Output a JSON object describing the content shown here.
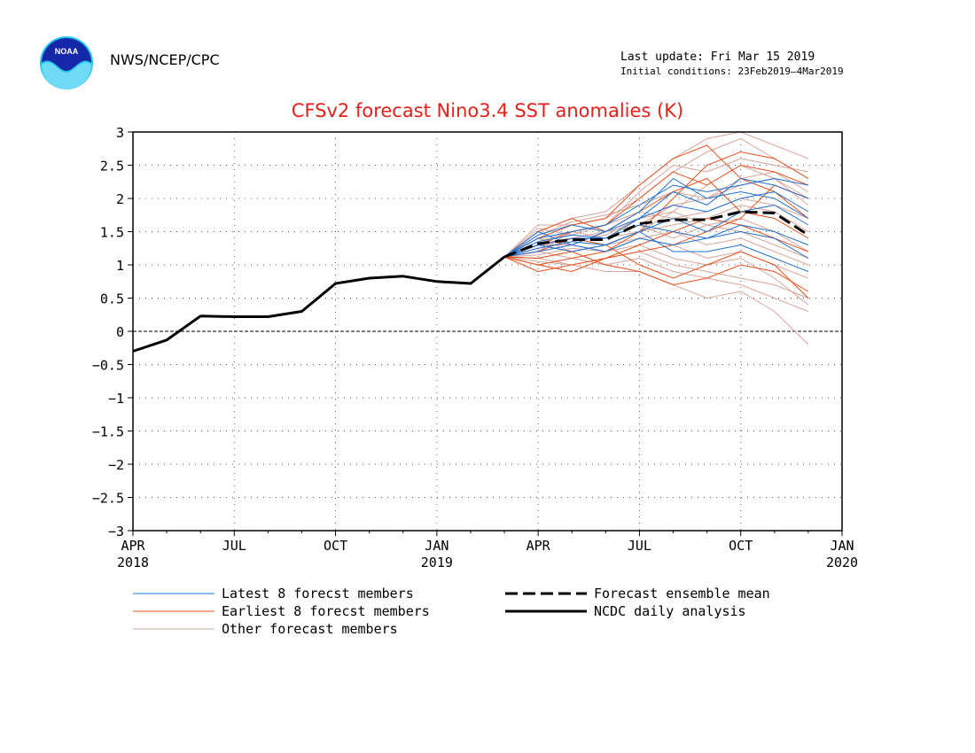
{
  "header": {
    "org": "NWS/NCEP/CPC",
    "last_update": "Last update: Fri Mar 15 2019",
    "initial_conditions": "Initial conditions: 23Feb2019–4Mar2019",
    "logo_text": "NOAA"
  },
  "colors": {
    "latest": "#1f6fd1",
    "earliest": "#e8501c",
    "other": "#d6a49a",
    "mean": "#000000",
    "analysis": "#000000",
    "title": "#e8201a"
  },
  "chart_data": {
    "type": "line",
    "title": "CFSv2 forecast Nino3.4 SST anomalies (K)",
    "ylabel": "",
    "xlabel": "",
    "ylim": [
      -3,
      3
    ],
    "xlim": [
      0,
      21
    ],
    "yticks": [
      3,
      2.5,
      2,
      1.5,
      1,
      0.5,
      0,
      -0.5,
      -1,
      -1.5,
      -2,
      -2.5,
      -3
    ],
    "ytick_labels": [
      "3",
      "2.5",
      "2",
      "1.5",
      "1",
      "0.5",
      "0",
      "−0.5",
      "−1",
      "−1.5",
      "−2",
      "−2.5",
      "−3"
    ],
    "xticks": [
      {
        "pos": 0,
        "month": "APR",
        "year": "2018"
      },
      {
        "pos": 3,
        "month": "JUL",
        "year": ""
      },
      {
        "pos": 6,
        "month": "OCT",
        "year": ""
      },
      {
        "pos": 9,
        "month": "JAN",
        "year": "2019"
      },
      {
        "pos": 12,
        "month": "APR",
        "year": ""
      },
      {
        "pos": 15,
        "month": "JUL",
        "year": ""
      },
      {
        "pos": 18,
        "month": "OCT",
        "year": ""
      },
      {
        "pos": 21,
        "month": "JAN",
        "year": "2020"
      }
    ],
    "grid": true,
    "zero_line": true,
    "legend": [
      {
        "label": "Latest 8 forecst members",
        "style": "latest"
      },
      {
        "label": "Earliest 8 forecst members",
        "style": "earliest"
      },
      {
        "label": "Other forecast members",
        "style": "other"
      },
      {
        "label": "Forecast ensemble mean",
        "style": "mean"
      },
      {
        "label": "NCDC daily analysis",
        "style": "analysis"
      }
    ],
    "ncdc_analysis": {
      "x": [
        0,
        1,
        2,
        3,
        4,
        5,
        6,
        7,
        8,
        9,
        10,
        11
      ],
      "y": [
        -0.3,
        -0.13,
        0.23,
        0.22,
        0.22,
        0.3,
        0.72,
        0.8,
        0.83,
        0.75,
        0.72,
        1.12
      ]
    },
    "ensemble_mean": {
      "x": [
        11,
        12,
        13,
        14,
        15,
        16,
        17,
        18,
        19,
        20
      ],
      "y": [
        1.12,
        1.32,
        1.38,
        1.38,
        1.62,
        1.68,
        1.68,
        1.8,
        1.78,
        1.45
      ]
    },
    "members_x": [
      11,
      12,
      13,
      14,
      15,
      16,
      17,
      18,
      19,
      20
    ],
    "latest_members": [
      [
        1.12,
        1.4,
        1.5,
        1.6,
        1.9,
        2.2,
        2.1,
        2.2,
        2.3,
        2.2
      ],
      [
        1.12,
        1.3,
        1.4,
        1.4,
        1.7,
        1.9,
        1.8,
        2.0,
        2.1,
        1.8
      ],
      [
        1.12,
        1.5,
        1.3,
        1.5,
        1.8,
        2.3,
        2.0,
        2.1,
        2.0,
        1.7
      ],
      [
        1.12,
        1.25,
        1.35,
        1.3,
        1.5,
        1.7,
        1.5,
        1.8,
        1.9,
        1.6
      ],
      [
        1.12,
        1.35,
        1.45,
        1.4,
        1.6,
        1.5,
        1.4,
        1.6,
        1.5,
        1.3
      ],
      [
        1.12,
        1.2,
        1.3,
        1.2,
        1.4,
        1.3,
        1.4,
        1.5,
        1.4,
        1.1
      ],
      [
        1.12,
        1.45,
        1.6,
        1.5,
        1.7,
        2.1,
        1.9,
        2.3,
        2.2,
        2.0
      ],
      [
        1.12,
        1.3,
        1.2,
        1.3,
        1.5,
        1.2,
        1.2,
        1.3,
        1.1,
        0.9
      ]
    ],
    "earliest_members": [
      [
        1.12,
        1.0,
        1.1,
        1.2,
        1.5,
        2.0,
        2.5,
        2.7,
        2.6,
        2.3
      ],
      [
        1.12,
        0.9,
        1.0,
        1.1,
        1.2,
        1.3,
        1.5,
        1.7,
        2.2,
        2.0
      ],
      [
        1.12,
        1.3,
        1.5,
        1.6,
        2.0,
        2.4,
        2.2,
        2.5,
        2.4,
        2.2
      ],
      [
        1.12,
        1.1,
        1.2,
        1.0,
        0.9,
        0.7,
        0.8,
        1.0,
        0.9,
        0.6
      ],
      [
        1.12,
        1.5,
        1.7,
        1.5,
        1.8,
        2.1,
        2.3,
        1.8,
        1.7,
        1.4
      ],
      [
        1.12,
        1.2,
        1.4,
        1.3,
        1.0,
        0.8,
        1.0,
        1.2,
        1.0,
        0.5
      ],
      [
        1.12,
        1.4,
        1.6,
        1.7,
        2.2,
        2.6,
        2.8,
        2.3,
        2.1,
        1.7
      ],
      [
        1.12,
        1.0,
        0.9,
        1.1,
        1.3,
        1.5,
        1.7,
        1.6,
        1.4,
        1.2
      ]
    ],
    "other_members": [
      [
        1.12,
        1.5,
        1.7,
        1.8,
        2.2,
        2.6,
        2.9,
        3.0,
        2.8,
        2.6
      ],
      [
        1.12,
        1.6,
        1.6,
        1.7,
        2.0,
        2.4,
        2.7,
        2.9,
        2.6,
        2.3
      ],
      [
        1.12,
        1.2,
        1.1,
        1.0,
        1.1,
        0.9,
        0.8,
        0.7,
        0.5,
        0.3
      ],
      [
        1.12,
        1.1,
        1.0,
        0.9,
        0.9,
        0.7,
        0.5,
        0.6,
        0.3,
        -0.2
      ],
      [
        1.12,
        1.3,
        1.4,
        1.5,
        1.6,
        1.9,
        2.0,
        2.2,
        2.3,
        2.0
      ],
      [
        1.12,
        1.4,
        1.2,
        1.3,
        1.4,
        1.3,
        1.1,
        1.2,
        1.0,
        0.8
      ],
      [
        1.12,
        1.25,
        1.35,
        1.45,
        1.7,
        1.8,
        1.6,
        1.7,
        1.5,
        1.2
      ],
      [
        1.12,
        1.35,
        1.5,
        1.4,
        1.5,
        1.6,
        1.7,
        1.9,
        1.8,
        1.5
      ],
      [
        1.12,
        1.15,
        1.25,
        1.2,
        1.3,
        1.1,
        1.0,
        1.1,
        0.8,
        0.4
      ],
      [
        1.12,
        1.45,
        1.65,
        1.75,
        1.9,
        2.1,
        2.0,
        2.3,
        2.4,
        2.1
      ],
      [
        1.12,
        1.05,
        1.0,
        1.1,
        1.2,
        1.0,
        0.9,
        0.8,
        0.7,
        0.5
      ],
      [
        1.12,
        1.55,
        1.45,
        1.6,
        2.1,
        2.5,
        2.4,
        2.6,
        2.5,
        2.4
      ],
      [
        1.12,
        1.3,
        1.3,
        1.2,
        1.4,
        1.5,
        1.3,
        1.4,
        1.2,
        1.0
      ],
      [
        1.12,
        1.2,
        1.5,
        1.6,
        1.8,
        1.7,
        1.8,
        2.0,
        1.9,
        1.7
      ],
      [
        1.12,
        1.4,
        1.3,
        1.5,
        1.6,
        1.4,
        1.6,
        1.5,
        1.3,
        1.1
      ],
      [
        1.12,
        1.1,
        1.2,
        1.3,
        1.5,
        1.8,
        2.2,
        2.5,
        2.3,
        1.9
      ]
    ]
  }
}
